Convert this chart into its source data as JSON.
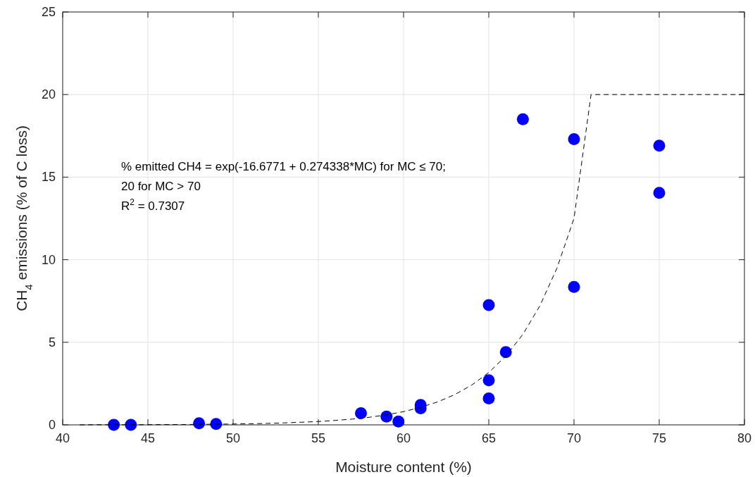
{
  "chart_data": {
    "type": "scatter",
    "xlabel": "Moisture content (%)",
    "ylabel": "CH$_{4}$ emissions (% of C loss)",
    "xlim": [
      40,
      80
    ],
    "xticks": [
      40,
      45,
      50,
      55,
      60,
      65,
      70,
      75,
      80
    ],
    "ylim": [
      0,
      25
    ],
    "yticks": [
      0,
      5,
      10,
      15,
      20,
      25
    ],
    "grid": true,
    "annotations": [
      "% emitted CH4 = exp(-16.6771 + 0.274338*MC) for MC  ≤  70;",
      "20 for MC > 70",
      "R$^{2}$ = 0.7307"
    ],
    "series": [
      {
        "color": "#0000ff",
        "marker": "circle",
        "x": [
          43,
          44,
          48,
          49,
          57.5,
          59,
          59.7,
          61,
          61,
          65,
          65,
          65,
          66,
          67,
          70,
          70,
          75,
          75
        ],
        "values": [
          0,
          0,
          0.1,
          0.05,
          0.7,
          0.5,
          0.2,
          1.2,
          1.0,
          7.25,
          2.7,
          1.6,
          4.4,
          18.5,
          17.3,
          8.35,
          16.9,
          14.05
        ]
      },
      {
        "type": "line",
        "color": "#000000",
        "marker": "none",
        "line_style": "dashed",
        "x": [
          41,
          42,
          43,
          44,
          45,
          46,
          47,
          48,
          49,
          50,
          51,
          52,
          53,
          54,
          55,
          56,
          57,
          58,
          59,
          60,
          61,
          62,
          63,
          64,
          65,
          66,
          67,
          68,
          69,
          70,
          71,
          80
        ],
        "values": [
          0,
          0.01,
          0.01,
          0.01,
          0.01,
          0.02,
          0.02,
          0.03,
          0.04,
          0.05,
          0.07,
          0.09,
          0.12,
          0.16,
          0.2,
          0.27,
          0.35,
          0.46,
          0.61,
          0.8,
          1.06,
          1.39,
          1.83,
          2.41,
          3.17,
          4.17,
          5.48,
          7.21,
          9.49,
          12.5,
          20,
          20
        ]
      }
    ]
  }
}
